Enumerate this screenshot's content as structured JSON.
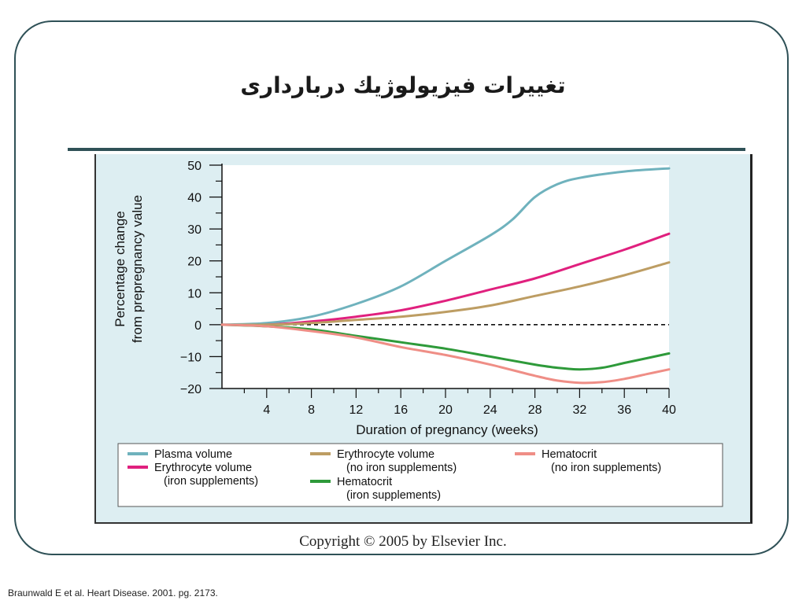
{
  "slide": {
    "title": "تغييرات فيزيولوژيك درباردارى",
    "copyright": "Copyright © 2005 by Elsevier Inc.",
    "citation": "Braunwald E et al. Heart Disease. 2001. pg. 2173.",
    "frame_color": "#2f5157"
  },
  "chart_data": {
    "type": "line",
    "title": "",
    "xlabel": "Duration of pregnancy (weeks)",
    "ylabel_lines": [
      "Percentage change",
      "from prepregnancy value"
    ],
    "xlim": [
      0,
      40
    ],
    "ylim": [
      -20,
      50
    ],
    "x_ticks": [
      4,
      8,
      12,
      16,
      20,
      24,
      28,
      32,
      36,
      40
    ],
    "y_ticks": [
      50,
      40,
      30,
      20,
      10,
      0,
      -10,
      -20
    ],
    "y_tick_labels": [
      "50",
      "40",
      "30",
      "20",
      "10",
      "0",
      "−10",
      "−20"
    ],
    "baseline": {
      "y": 0,
      "style": "dashed"
    },
    "grid": false,
    "legend_position": "bottom",
    "series": [
      {
        "name": "Plasma volume",
        "color": "#6fb2bd",
        "x": [
          0,
          4,
          8,
          12,
          16,
          20,
          24,
          26,
          28,
          30,
          32,
          36,
          40
        ],
        "y": [
          0,
          0.5,
          2.5,
          6.5,
          12,
          20,
          28,
          33,
          40,
          44,
          46,
          48,
          49
        ]
      },
      {
        "name": "Erythrocyte volume",
        "sublabel": "(iron supplements)",
        "color": "#e0207e",
        "x": [
          0,
          4,
          8,
          12,
          16,
          20,
          24,
          28,
          32,
          36,
          40
        ],
        "y": [
          0,
          0,
          1,
          2.5,
          4.5,
          7.5,
          11,
          14.5,
          19,
          23.5,
          28.5
        ]
      },
      {
        "name": "Erythrocyte volume",
        "sublabel": "(no iron supplements)",
        "color": "#bd9d63",
        "x": [
          0,
          4,
          8,
          12,
          16,
          20,
          24,
          28,
          32,
          36,
          40
        ],
        "y": [
          0,
          0,
          0.5,
          1.5,
          2.5,
          4,
          6,
          9,
          12,
          15.5,
          19.5
        ]
      },
      {
        "name": "Hematocrit",
        "sublabel": "(iron supplements)",
        "color": "#2e9a3a",
        "x": [
          0,
          4,
          8,
          12,
          16,
          20,
          24,
          28,
          30,
          32,
          34,
          36,
          38,
          40
        ],
        "y": [
          0,
          -0.5,
          -1.5,
          -3.5,
          -5.5,
          -7.5,
          -10,
          -12.5,
          -13.5,
          -14,
          -13.5,
          -12,
          -10.5,
          -9
        ]
      },
      {
        "name": "Hematocrit",
        "sublabel": "(no iron supplements)",
        "color": "#ef8e86",
        "x": [
          0,
          4,
          8,
          12,
          16,
          20,
          24,
          28,
          30,
          32,
          34,
          36,
          38,
          40
        ],
        "y": [
          0,
          -0.5,
          -2,
          -4,
          -7,
          -9.5,
          -12.5,
          -16,
          -17.5,
          -18.2,
          -18,
          -17,
          -15.5,
          -14
        ]
      }
    ]
  }
}
